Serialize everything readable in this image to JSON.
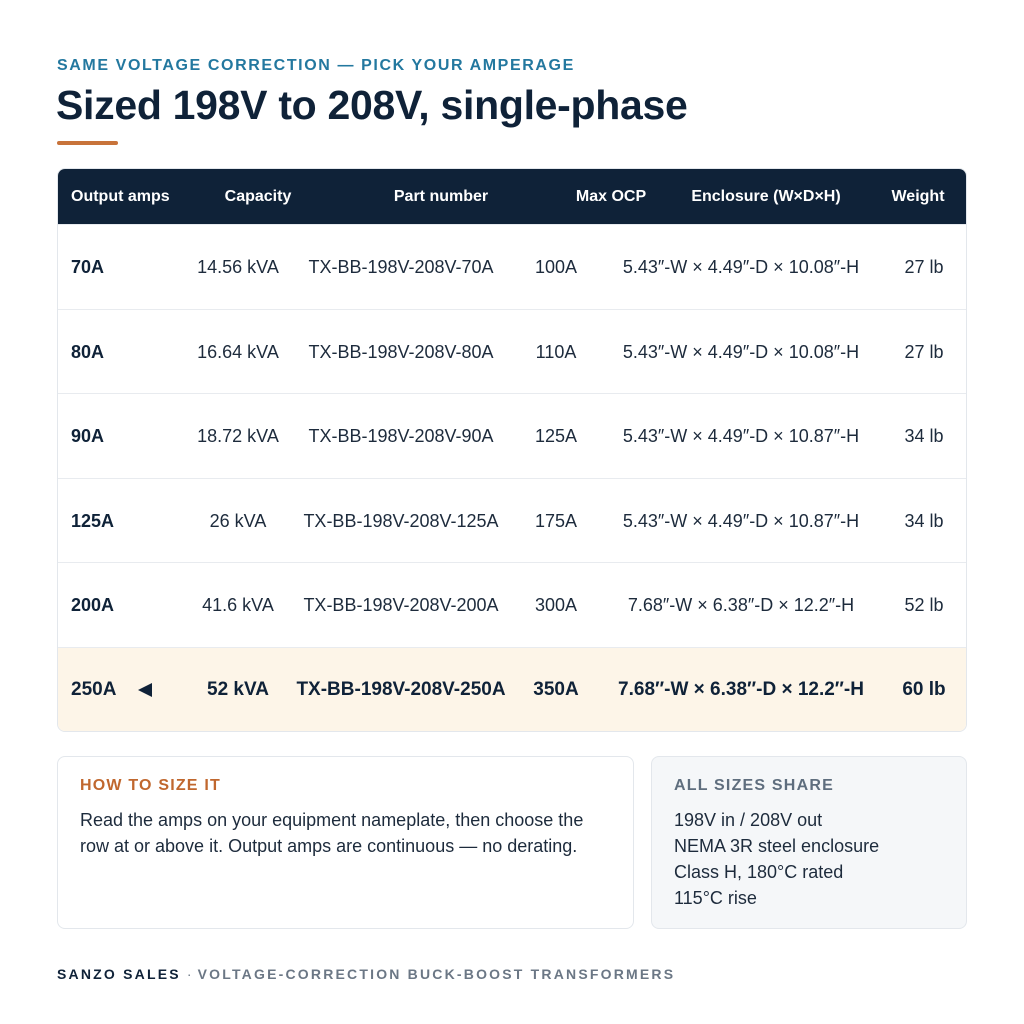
{
  "eyebrow": "SAME VOLTAGE CORRECTION — PICK YOUR AMPERAGE",
  "title": "Sized 198V to 208V, single-phase",
  "table": {
    "columns": [
      "Output amps",
      "Capacity",
      "Part number",
      "Max OCP",
      "Enclosure (W×D×H)",
      "Weight"
    ],
    "rows": [
      [
        "70A",
        "14.56 kVA",
        "TX-BB-198V-208V-70A",
        "100A",
        "5.43″-W × 4.49″-D × 10.08″-H",
        "27 lb"
      ],
      [
        "80A",
        "16.64 kVA",
        "TX-BB-198V-208V-80A",
        "110A",
        "5.43″-W × 4.49″-D × 10.08″-H",
        "27 lb"
      ],
      [
        "90A",
        "18.72 kVA",
        "TX-BB-198V-208V-90A",
        "125A",
        "5.43″-W × 4.49″-D × 10.87″-H",
        "34 lb"
      ],
      [
        "125A",
        "26 kVA",
        "TX-BB-198V-208V-125A",
        "175A",
        "5.43″-W × 4.49″-D × 10.87″-H",
        "34 lb"
      ],
      [
        "200A",
        "41.6 kVA",
        "TX-BB-198V-208V-200A",
        "300A",
        "7.68″-W × 6.38″-D × 12.2″-H",
        "52 lb"
      ],
      [
        "250A",
        "52 kVA",
        "TX-BB-198V-208V-250A",
        "350A",
        "7.68″-W × 6.38″-D × 12.2″-H",
        "60 lb"
      ]
    ]
  },
  "sizing": {
    "heading": "HOW TO SIZE IT",
    "body": "Read the amps on your equipment nameplate, then choose the row at or above it. Output amps are continuous — no derating."
  },
  "shared": {
    "heading": "ALL SIZES SHARE",
    "items": [
      "198V in / 208V out",
      "NEMA 3R steel enclosure",
      "Class H, 180°C rated",
      "115°C rise"
    ]
  },
  "footer": {
    "brand": "SANZO SALES",
    "separator": "·",
    "tagline": "VOLTAGE-CORRECTION BUCK-BOOST TRANSFORMERS"
  }
}
